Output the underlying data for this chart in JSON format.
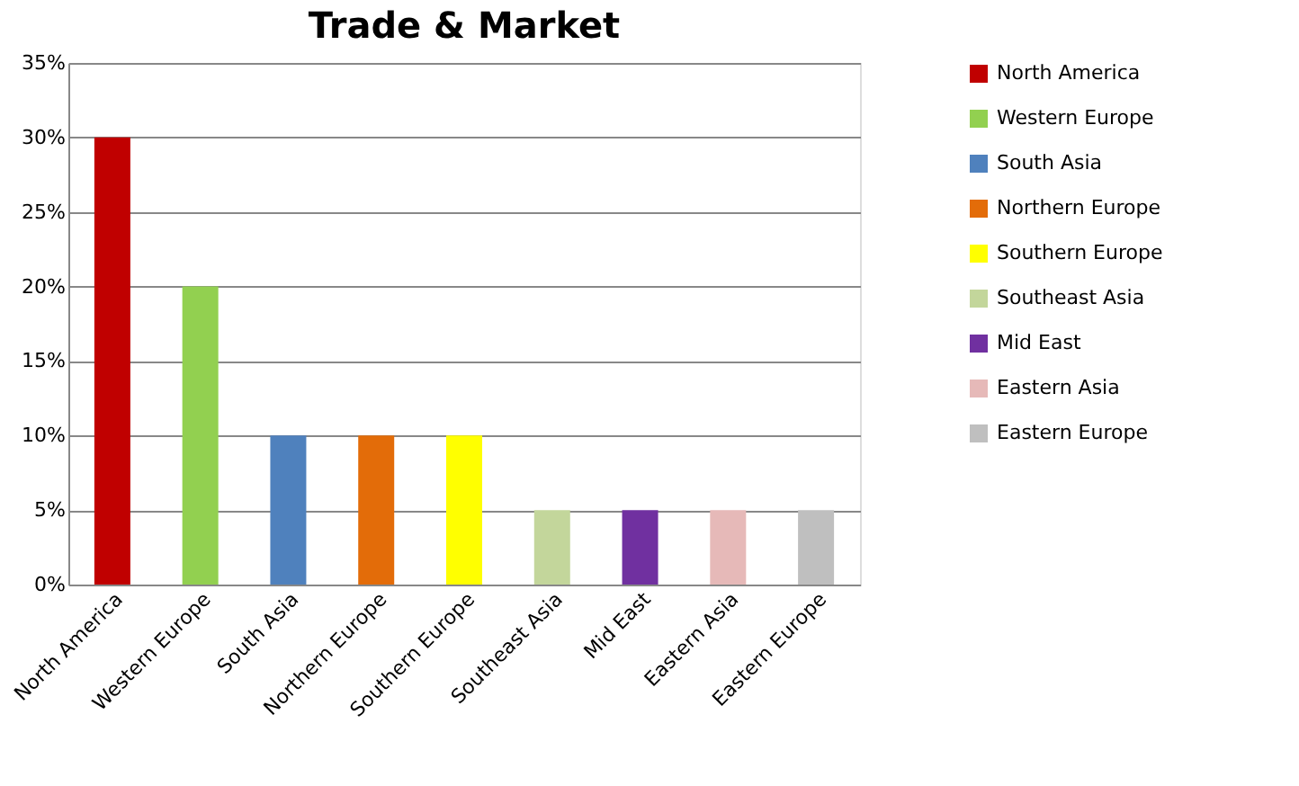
{
  "chart_data": {
    "type": "bar",
    "title": "Trade & Market",
    "categories": [
      "North America",
      "Western Europe",
      "South Asia",
      "Northern Europe",
      "Southern Europe",
      "Southeast Asia",
      "Mid East",
      "Eastern Asia",
      "Eastern Europe"
    ],
    "series": [
      {
        "name": "North America",
        "color": "#c00000",
        "values": [
          30,
          null,
          null,
          null,
          null,
          null,
          null,
          null,
          null
        ]
      },
      {
        "name": "Western Europe",
        "color": "#92d050",
        "values": [
          null,
          20,
          null,
          null,
          null,
          null,
          null,
          null,
          null
        ]
      },
      {
        "name": "South Asia",
        "color": "#4f81bd",
        "values": [
          null,
          null,
          10,
          null,
          null,
          null,
          null,
          null,
          null
        ]
      },
      {
        "name": "Northern Europe",
        "color": "#e36c09",
        "values": [
          null,
          null,
          null,
          10,
          null,
          null,
          null,
          null,
          null
        ]
      },
      {
        "name": "Southern Europe",
        "color": "#ffff00",
        "values": [
          null,
          null,
          null,
          null,
          10,
          null,
          null,
          null,
          null
        ]
      },
      {
        "name": "Southeast Asia",
        "color": "#c3d69b",
        "values": [
          null,
          null,
          null,
          null,
          null,
          5,
          null,
          null,
          null
        ]
      },
      {
        "name": "Mid East",
        "color": "#7030a0",
        "values": [
          null,
          null,
          null,
          null,
          null,
          null,
          5,
          null,
          null
        ]
      },
      {
        "name": "Eastern Asia",
        "color": "#e6b9b8",
        "values": [
          null,
          null,
          null,
          null,
          null,
          null,
          null,
          5,
          null
        ]
      },
      {
        "name": "Eastern Europe",
        "color": "#bfbfbf",
        "values": [
          null,
          null,
          null,
          null,
          null,
          null,
          null,
          null,
          5
        ]
      }
    ],
    "ylim": [
      0,
      35
    ],
    "yticks": [
      {
        "value": 0,
        "label": "0%"
      },
      {
        "value": 5,
        "label": "5%"
      },
      {
        "value": 10,
        "label": "10%"
      },
      {
        "value": 15,
        "label": "15%"
      },
      {
        "value": 20,
        "label": "20%"
      },
      {
        "value": 25,
        "label": "25%"
      },
      {
        "value": 30,
        "label": "30%"
      },
      {
        "value": 35,
        "label": "35%"
      }
    ],
    "grid": "y",
    "legend": "right"
  }
}
